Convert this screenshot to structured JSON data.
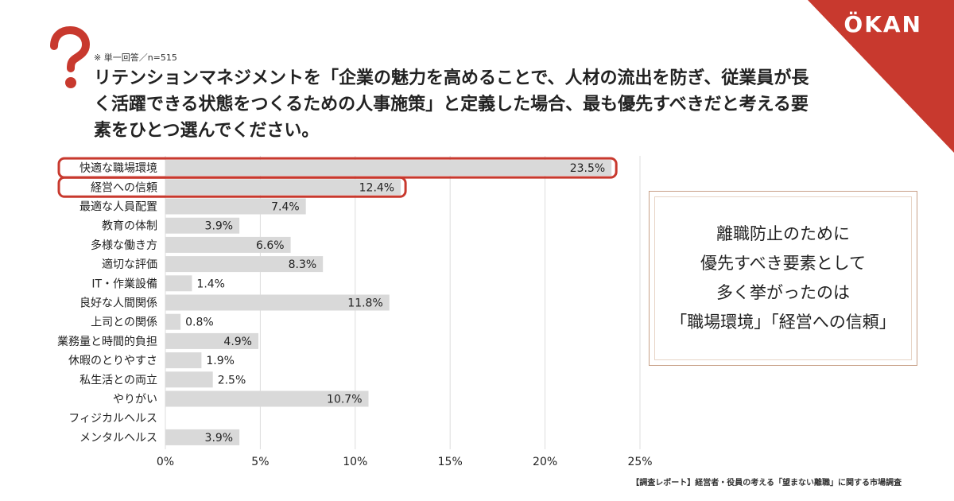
{
  "brand": {
    "logo": "ÖKAN",
    "accent_color": "#c8392e"
  },
  "header": {
    "question_icon": "question-mark-icon",
    "meta": "※ 単一回答／n=515",
    "question": "リテンションマネジメントを「企業の魅力を高めることで、人材の流出を防ぎ、従業員が長く活躍できる状態をつくるための人事施策」と定義した場合、最も優先すべきだと考える要素をひとつ選んでください。"
  },
  "chart_data": {
    "type": "bar",
    "orientation": "horizontal",
    "categories": [
      "快適な職場環境",
      "経営への信頼",
      "最適な人員配置",
      "教育の体制",
      "多様な働き方",
      "適切な評価",
      "IT・作業設備",
      "良好な人間関係",
      "上司との関係",
      "業務量と時間的負担",
      "休暇のとりやすさ",
      "私生活との両立",
      "やりがい",
      "フィジカルヘルス",
      "メンタルヘルス"
    ],
    "values": [
      23.5,
      12.4,
      7.4,
      3.9,
      6.6,
      8.3,
      1.4,
      11.8,
      0.8,
      4.9,
      1.9,
      2.5,
      10.7,
      0,
      3.9
    ],
    "labels": [
      "23.5%",
      "12.4%",
      "7.4%",
      "3.9%",
      "6.6%",
      "8.3%",
      "1.4%",
      "11.8%",
      "0.8%",
      "4.9%",
      "1.9%",
      "2.5%",
      "10.7%",
      "",
      "3.9%"
    ],
    "highlighted": [
      "快適な職場環境",
      "経営への信頼"
    ],
    "xlim": [
      0,
      25
    ],
    "xticks": [
      "0%",
      "5%",
      "10%",
      "15%",
      "20%",
      "25%"
    ],
    "grid": true,
    "bar_color": "#d9d9d9",
    "highlight_color": "#c8392e"
  },
  "callout": {
    "lines": [
      "離職防止のために",
      "優先すべき要素として",
      "多く挙がったのは",
      "「職場環境」「経営への信頼」"
    ]
  },
  "footer": {
    "source": "【調査レポート】経営者・役員の考える「望まない離職」に関する市場調査"
  }
}
